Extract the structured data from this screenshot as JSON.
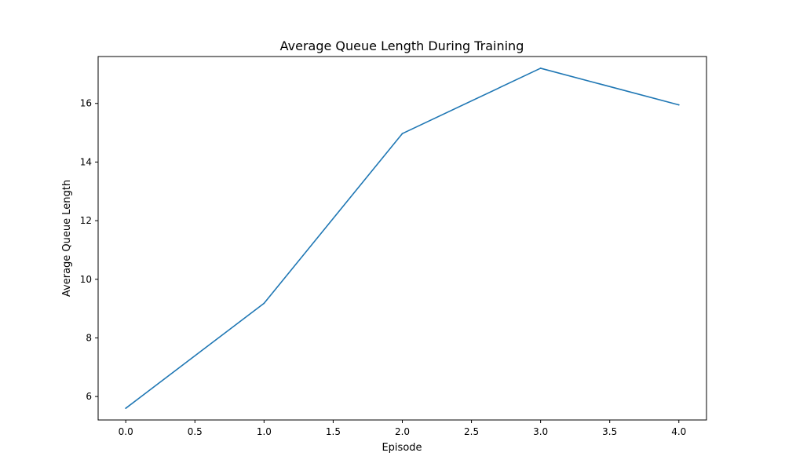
{
  "chart_data": {
    "type": "line",
    "title": "Average Queue Length During Training",
    "xlabel": "Episode",
    "ylabel": "Average Queue Length",
    "xlim": [
      -0.2,
      4.2
    ],
    "ylim": [
      5.2,
      17.6
    ],
    "xticks": [
      0.0,
      0.5,
      1.0,
      1.5,
      2.0,
      2.5,
      3.0,
      3.5,
      4.0
    ],
    "xtick_labels": [
      "0.0",
      "0.5",
      "1.0",
      "1.5",
      "2.0",
      "2.5",
      "3.0",
      "3.5",
      "4.0"
    ],
    "yticks": [
      6,
      8,
      10,
      12,
      14,
      16
    ],
    "ytick_labels": [
      "6",
      "8",
      "10",
      "12",
      "14",
      "16"
    ],
    "grid": false,
    "series": [
      {
        "color": "#1f77b4",
        "x": [
          0,
          1,
          2,
          3,
          4
        ],
        "y": [
          5.6,
          9.18,
          14.97,
          17.2,
          15.95
        ]
      }
    ]
  }
}
